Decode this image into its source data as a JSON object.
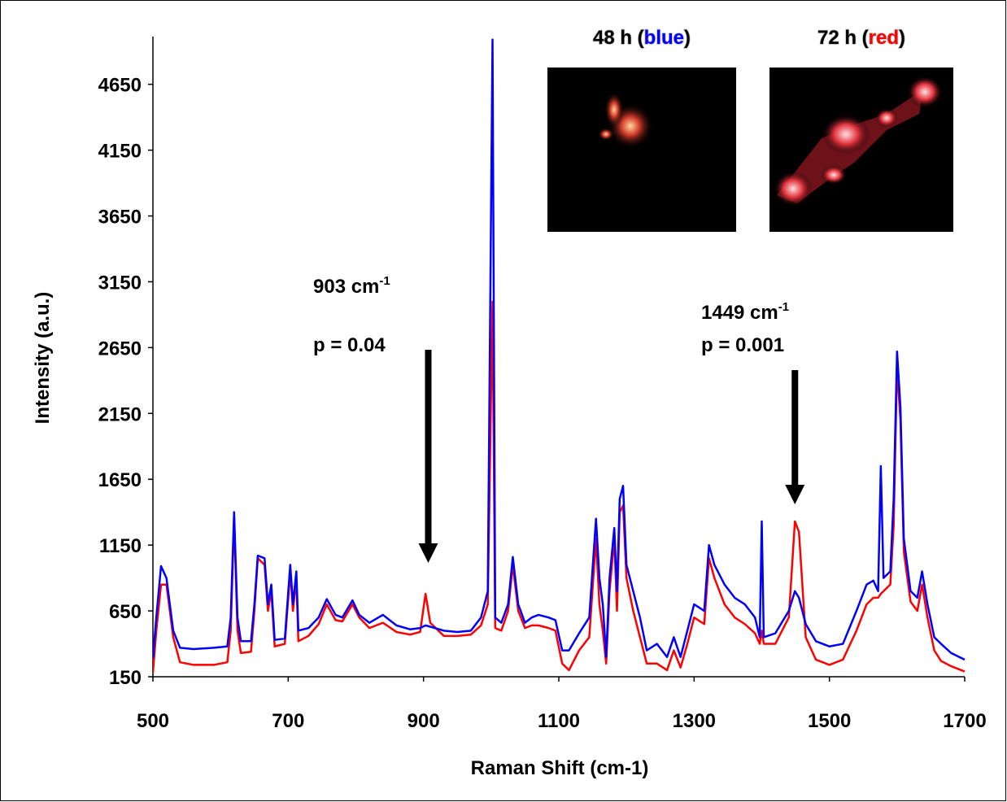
{
  "chart_data": {
    "type": "line",
    "x_label": "Raman Shift (cm-1)",
    "y_label": "Intensity (a.u.)",
    "xlim": [
      500,
      1700
    ],
    "xticks": [
      500,
      700,
      900,
      1100,
      1300,
      1500,
      1700
    ],
    "ylim": [
      150,
      5000
    ],
    "yticks": [
      150,
      650,
      1150,
      1650,
      2150,
      2650,
      3150,
      3650,
      4150,
      4650
    ],
    "x": [
      500,
      505,
      512,
      520,
      530,
      540,
      560,
      590,
      610,
      615,
      620,
      625,
      630,
      645,
      650,
      655,
      665,
      670,
      675,
      680,
      695,
      703,
      707,
      712,
      715,
      730,
      745,
      757,
      770,
      780,
      795,
      805,
      820,
      840,
      860,
      880,
      895,
      903,
      910,
      930,
      950,
      970,
      985,
      995,
      1002,
      1006,
      1015,
      1025,
      1032,
      1040,
      1050,
      1060,
      1070,
      1085,
      1095,
      1105,
      1115,
      1130,
      1145,
      1155,
      1160,
      1165,
      1170,
      1175,
      1182,
      1186,
      1190,
      1195,
      1200,
      1210,
      1220,
      1230,
      1245,
      1260,
      1270,
      1280,
      1290,
      1300,
      1315,
      1322,
      1330,
      1345,
      1360,
      1375,
      1390,
      1397,
      1400,
      1403,
      1420,
      1440,
      1449,
      1455,
      1465,
      1480,
      1500,
      1520,
      1540,
      1555,
      1565,
      1572,
      1576,
      1580,
      1590,
      1595,
      1600,
      1605,
      1610,
      1620,
      1630,
      1637,
      1645,
      1655,
      1665,
      1680,
      1700
    ],
    "series": [
      {
        "color": "#ff0000",
        "values": [
          180,
          500,
          850,
          850,
          450,
          260,
          240,
          240,
          260,
          500,
          1350,
          500,
          330,
          340,
          650,
          1050,
          1000,
          650,
          800,
          380,
          400,
          950,
          650,
          900,
          420,
          460,
          550,
          700,
          580,
          570,
          700,
          600,
          520,
          560,
          490,
          470,
          490,
          780,
          560,
          460,
          460,
          470,
          540,
          700,
          3000,
          520,
          500,
          650,
          1000,
          650,
          520,
          540,
          540,
          520,
          500,
          250,
          200,
          350,
          450,
          1200,
          700,
          500,
          250,
          800,
          1200,
          650,
          1400,
          1450,
          900,
          650,
          450,
          250,
          250,
          200,
          350,
          220,
          400,
          600,
          550,
          1050,
          900,
          700,
          600,
          550,
          480,
          400,
          500,
          400,
          400,
          600,
          1330,
          1250,
          450,
          280,
          240,
          280,
          500,
          700,
          750,
          750,
          780,
          800,
          850,
          1300,
          2500,
          2100,
          1100,
          720,
          650,
          850,
          600,
          350,
          270,
          230,
          190
        ]
      },
      {
        "color": "#0000ff",
        "values": [
          290,
          600,
          990,
          900,
          500,
          370,
          360,
          370,
          380,
          600,
          1400,
          600,
          420,
          420,
          700,
          1070,
          1050,
          700,
          850,
          430,
          440,
          1000,
          700,
          950,
          500,
          520,
          600,
          740,
          620,
          600,
          730,
          620,
          560,
          620,
          540,
          510,
          520,
          540,
          530,
          500,
          490,
          500,
          600,
          800,
          4990,
          600,
          560,
          700,
          1060,
          700,
          560,
          600,
          620,
          600,
          580,
          350,
          350,
          480,
          600,
          1350,
          900,
          700,
          300,
          900,
          1280,
          800,
          1500,
          1600,
          1000,
          800,
          600,
          350,
          400,
          300,
          450,
          300,
          500,
          700,
          650,
          1150,
          1000,
          850,
          750,
          700,
          600,
          450,
          1330,
          450,
          480,
          650,
          800,
          750,
          550,
          420,
          380,
          400,
          650,
          850,
          880,
          800,
          1750,
          900,
          950,
          1500,
          2620,
          2200,
          1200,
          800,
          750,
          950,
          700,
          450,
          400,
          330,
          280
        ]
      }
    ],
    "annotations": [
      {
        "text": "903 cm",
        "superscript": "-1",
        "note": "p = 0.04",
        "x": 907
      },
      {
        "text": "1449 cm",
        "superscript": "-1",
        "note": "p = 0.001",
        "x": 1449
      }
    ],
    "insets": [
      {
        "parts": [
          "48 h (",
          "blue",
          ")"
        ],
        "highlight": "#0000ff"
      },
      {
        "parts": [
          "72 h (",
          "red",
          ")"
        ],
        "highlight": "#ff0000"
      }
    ]
  }
}
